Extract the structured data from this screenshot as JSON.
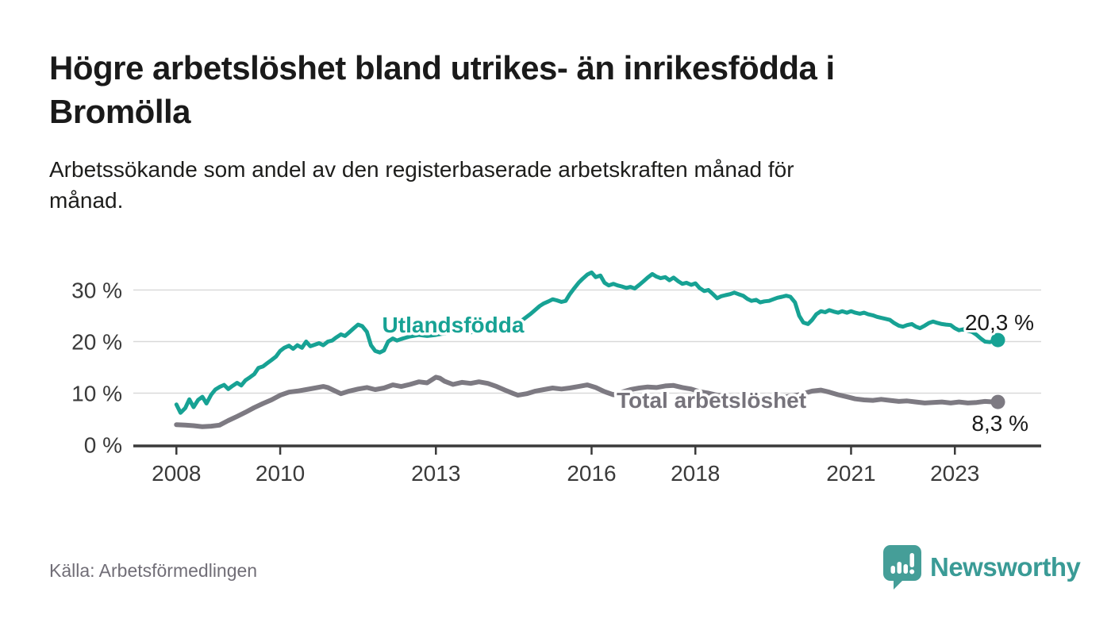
{
  "title": {
    "lines": [
      "Högre arbetslöshet bland utrikes- än inrikesfödda i",
      "Bromölla"
    ]
  },
  "subtitle": {
    "lines": [
      "Arbetssökande som andel av den registerbaserade arbetskraften månad för",
      "månad."
    ]
  },
  "footer": {
    "source": "Källa: Arbetsförmedlingen",
    "brand": "Newsworthy"
  },
  "colors": {
    "accent_teal": "#17a294",
    "line_gray": "#7d7a82",
    "axis": "#3a3a3a",
    "grid": "#d9d9d9",
    "brand_teal": "#3a9b96",
    "logo_teal": "#459e98"
  },
  "chart_data": {
    "type": "line",
    "xlabel": "",
    "ylabel": "",
    "grid": "horizontal",
    "xlim": [
      2007.17,
      2024.77
    ],
    "ylim": [
      0,
      34.7
    ],
    "y_ticks": [
      {
        "value": 0,
        "label": "0 %"
      },
      {
        "value": 10,
        "label": "10 %"
      },
      {
        "value": 20,
        "label": "20 %"
      },
      {
        "value": 30,
        "label": "30 %"
      }
    ],
    "x_ticks": [
      {
        "value": 2008,
        "label": "2008"
      },
      {
        "value": 2010,
        "label": "2010"
      },
      {
        "value": 2013,
        "label": "2013"
      },
      {
        "value": 2016,
        "label": "2016"
      },
      {
        "value": 2018,
        "label": "2018"
      },
      {
        "value": 2021,
        "label": "2021"
      },
      {
        "value": 2023,
        "label": "2023"
      }
    ],
    "series": [
      {
        "name": "Utlandsfödda",
        "color": "#17a294",
        "label_color": "#17a294",
        "end_label": "20,3 %",
        "end_value": 20.3,
        "points": [
          [
            2008.0,
            7.8
          ],
          [
            2008.08,
            6.2
          ],
          [
            2008.17,
            7.1
          ],
          [
            2008.25,
            8.8
          ],
          [
            2008.33,
            7.3
          ],
          [
            2008.42,
            8.7
          ],
          [
            2008.5,
            9.3
          ],
          [
            2008.58,
            8.0
          ],
          [
            2008.67,
            9.7
          ],
          [
            2008.75,
            10.7
          ],
          [
            2008.83,
            11.2
          ],
          [
            2008.92,
            11.6
          ],
          [
            2009.0,
            10.8
          ],
          [
            2009.08,
            11.4
          ],
          [
            2009.17,
            12.0
          ],
          [
            2009.25,
            11.5
          ],
          [
            2009.33,
            12.5
          ],
          [
            2009.42,
            13.1
          ],
          [
            2009.5,
            13.7
          ],
          [
            2009.58,
            14.9
          ],
          [
            2009.67,
            15.2
          ],
          [
            2009.75,
            15.8
          ],
          [
            2009.83,
            16.4
          ],
          [
            2009.92,
            17.1
          ],
          [
            2010.0,
            18.2
          ],
          [
            2010.08,
            18.8
          ],
          [
            2010.17,
            19.2
          ],
          [
            2010.25,
            18.6
          ],
          [
            2010.33,
            19.3
          ],
          [
            2010.42,
            18.8
          ],
          [
            2010.5,
            20.0
          ],
          [
            2010.58,
            19.1
          ],
          [
            2010.67,
            19.4
          ],
          [
            2010.75,
            19.7
          ],
          [
            2010.83,
            19.3
          ],
          [
            2010.92,
            20.0
          ],
          [
            2011.0,
            20.2
          ],
          [
            2011.08,
            20.8
          ],
          [
            2011.17,
            21.4
          ],
          [
            2011.25,
            21.1
          ],
          [
            2011.33,
            21.8
          ],
          [
            2011.42,
            22.6
          ],
          [
            2011.5,
            23.3
          ],
          [
            2011.58,
            23.0
          ],
          [
            2011.67,
            21.9
          ],
          [
            2011.75,
            19.3
          ],
          [
            2011.83,
            18.2
          ],
          [
            2011.92,
            17.9
          ],
          [
            2012.0,
            18.3
          ],
          [
            2012.08,
            20.0
          ],
          [
            2012.17,
            20.6
          ],
          [
            2012.25,
            20.2
          ],
          [
            2012.33,
            20.5
          ],
          [
            2012.5,
            21.0
          ],
          [
            2012.67,
            21.3
          ],
          [
            2012.83,
            21.1
          ],
          [
            2013.0,
            21.3
          ],
          [
            2013.17,
            21.6
          ],
          [
            2013.33,
            21.9
          ],
          [
            2013.5,
            22.1
          ],
          [
            2013.67,
            21.8
          ],
          [
            2013.83,
            22.0
          ],
          [
            2014.0,
            22.2
          ],
          [
            2014.17,
            22.4
          ],
          [
            2014.33,
            22.6
          ],
          [
            2014.5,
            23.2
          ],
          [
            2014.67,
            24.2
          ],
          [
            2014.83,
            25.4
          ],
          [
            2015.0,
            26.9
          ],
          [
            2015.08,
            27.4
          ],
          [
            2015.17,
            27.8
          ],
          [
            2015.25,
            28.2
          ],
          [
            2015.33,
            28.0
          ],
          [
            2015.42,
            27.7
          ],
          [
            2015.5,
            27.9
          ],
          [
            2015.58,
            29.2
          ],
          [
            2015.67,
            30.4
          ],
          [
            2015.75,
            31.4
          ],
          [
            2015.83,
            32.2
          ],
          [
            2015.92,
            33.0
          ],
          [
            2016.0,
            33.4
          ],
          [
            2016.08,
            32.5
          ],
          [
            2016.17,
            32.8
          ],
          [
            2016.25,
            31.4
          ],
          [
            2016.33,
            30.9
          ],
          [
            2016.42,
            31.2
          ],
          [
            2016.5,
            30.9
          ],
          [
            2016.58,
            30.7
          ],
          [
            2016.67,
            30.4
          ],
          [
            2016.75,
            30.6
          ],
          [
            2016.83,
            30.3
          ],
          [
            2016.92,
            31.0
          ],
          [
            2017.0,
            31.7
          ],
          [
            2017.08,
            32.4
          ],
          [
            2017.17,
            33.1
          ],
          [
            2017.25,
            32.6
          ],
          [
            2017.33,
            32.3
          ],
          [
            2017.42,
            32.5
          ],
          [
            2017.5,
            31.9
          ],
          [
            2017.58,
            32.4
          ],
          [
            2017.67,
            31.7
          ],
          [
            2017.75,
            31.2
          ],
          [
            2017.83,
            31.4
          ],
          [
            2017.92,
            31.0
          ],
          [
            2018.0,
            31.3
          ],
          [
            2018.08,
            30.4
          ],
          [
            2018.17,
            29.8
          ],
          [
            2018.25,
            30.0
          ],
          [
            2018.33,
            29.3
          ],
          [
            2018.42,
            28.4
          ],
          [
            2018.5,
            28.8
          ],
          [
            2018.58,
            29.0
          ],
          [
            2018.67,
            29.2
          ],
          [
            2018.75,
            29.5
          ],
          [
            2018.83,
            29.2
          ],
          [
            2018.92,
            28.9
          ],
          [
            2019.0,
            28.3
          ],
          [
            2019.08,
            27.9
          ],
          [
            2019.17,
            28.1
          ],
          [
            2019.25,
            27.6
          ],
          [
            2019.33,
            27.8
          ],
          [
            2019.42,
            27.9
          ],
          [
            2019.5,
            28.2
          ],
          [
            2019.58,
            28.5
          ],
          [
            2019.67,
            28.7
          ],
          [
            2019.75,
            28.9
          ],
          [
            2019.83,
            28.7
          ],
          [
            2019.92,
            27.6
          ],
          [
            2020.0,
            25.0
          ],
          [
            2020.08,
            23.7
          ],
          [
            2020.17,
            23.4
          ],
          [
            2020.25,
            24.2
          ],
          [
            2020.33,
            25.3
          ],
          [
            2020.42,
            25.9
          ],
          [
            2020.5,
            25.7
          ],
          [
            2020.58,
            26.1
          ],
          [
            2020.67,
            25.8
          ],
          [
            2020.75,
            25.6
          ],
          [
            2020.83,
            25.9
          ],
          [
            2020.92,
            25.6
          ],
          [
            2021.0,
            25.9
          ],
          [
            2021.08,
            25.6
          ],
          [
            2021.17,
            25.4
          ],
          [
            2021.25,
            25.6
          ],
          [
            2021.33,
            25.3
          ],
          [
            2021.42,
            25.1
          ],
          [
            2021.5,
            24.8
          ],
          [
            2021.58,
            24.6
          ],
          [
            2021.67,
            24.4
          ],
          [
            2021.75,
            24.2
          ],
          [
            2021.83,
            23.6
          ],
          [
            2021.92,
            23.1
          ],
          [
            2022.0,
            22.9
          ],
          [
            2022.08,
            23.2
          ],
          [
            2022.17,
            23.4
          ],
          [
            2022.25,
            22.9
          ],
          [
            2022.33,
            22.6
          ],
          [
            2022.42,
            23.1
          ],
          [
            2022.5,
            23.6
          ],
          [
            2022.58,
            23.9
          ],
          [
            2022.67,
            23.6
          ],
          [
            2022.75,
            23.4
          ],
          [
            2022.83,
            23.3
          ],
          [
            2022.92,
            23.2
          ],
          [
            2023.0,
            22.6
          ],
          [
            2023.08,
            22.2
          ],
          [
            2023.17,
            22.4
          ],
          [
            2023.25,
            22.1
          ],
          [
            2023.33,
            21.9
          ],
          [
            2023.42,
            21.3
          ],
          [
            2023.5,
            20.6
          ],
          [
            2023.58,
            20.0
          ],
          [
            2023.67,
            19.9
          ],
          [
            2023.75,
            20.1
          ],
          [
            2023.83,
            20.3
          ]
        ]
      },
      {
        "name": "Total arbetslöshet",
        "color": "#7d7a82",
        "label_color": "#76737b",
        "end_label": "8,3 %",
        "end_value": 8.3,
        "points": [
          [
            2008.0,
            3.9
          ],
          [
            2008.17,
            3.8
          ],
          [
            2008.33,
            3.7
          ],
          [
            2008.5,
            3.5
          ],
          [
            2008.67,
            3.6
          ],
          [
            2008.83,
            3.8
          ],
          [
            2009.0,
            4.7
          ],
          [
            2009.17,
            5.5
          ],
          [
            2009.33,
            6.3
          ],
          [
            2009.5,
            7.2
          ],
          [
            2009.67,
            8.0
          ],
          [
            2009.83,
            8.7
          ],
          [
            2010.0,
            9.6
          ],
          [
            2010.17,
            10.2
          ],
          [
            2010.33,
            10.4
          ],
          [
            2010.5,
            10.7
          ],
          [
            2010.67,
            11.0
          ],
          [
            2010.83,
            11.3
          ],
          [
            2010.92,
            11.1
          ],
          [
            2011.0,
            10.7
          ],
          [
            2011.17,
            9.9
          ],
          [
            2011.33,
            10.4
          ],
          [
            2011.5,
            10.8
          ],
          [
            2011.67,
            11.1
          ],
          [
            2011.83,
            10.7
          ],
          [
            2012.0,
            11.0
          ],
          [
            2012.17,
            11.6
          ],
          [
            2012.33,
            11.3
          ],
          [
            2012.5,
            11.7
          ],
          [
            2012.67,
            12.2
          ],
          [
            2012.83,
            12.0
          ],
          [
            2013.0,
            13.1
          ],
          [
            2013.08,
            12.9
          ],
          [
            2013.17,
            12.3
          ],
          [
            2013.33,
            11.7
          ],
          [
            2013.5,
            12.1
          ],
          [
            2013.67,
            11.9
          ],
          [
            2013.83,
            12.2
          ],
          [
            2014.0,
            11.9
          ],
          [
            2014.17,
            11.3
          ],
          [
            2014.33,
            10.6
          ],
          [
            2014.5,
            9.9
          ],
          [
            2014.58,
            9.6
          ],
          [
            2014.75,
            9.9
          ],
          [
            2014.92,
            10.4
          ],
          [
            2015.08,
            10.7
          ],
          [
            2015.25,
            11.0
          ],
          [
            2015.42,
            10.8
          ],
          [
            2015.58,
            11.0
          ],
          [
            2015.75,
            11.3
          ],
          [
            2015.92,
            11.6
          ],
          [
            2016.08,
            11.1
          ],
          [
            2016.25,
            10.3
          ],
          [
            2016.42,
            9.7
          ],
          [
            2016.58,
            10.2
          ],
          [
            2016.75,
            10.7
          ],
          [
            2016.92,
            11.0
          ],
          [
            2017.08,
            11.2
          ],
          [
            2017.25,
            11.1
          ],
          [
            2017.42,
            11.4
          ],
          [
            2017.58,
            11.5
          ],
          [
            2017.75,
            11.1
          ],
          [
            2017.92,
            10.8
          ],
          [
            2018.08,
            10.3
          ],
          [
            2018.25,
            10.0
          ],
          [
            2018.42,
            9.6
          ],
          [
            2018.58,
            9.4
          ],
          [
            2018.75,
            9.3
          ],
          [
            2019.0,
            9.1
          ],
          [
            2019.25,
            9.0
          ],
          [
            2019.5,
            9.1
          ],
          [
            2019.75,
            9.3
          ],
          [
            2020.0,
            9.7
          ],
          [
            2020.25,
            10.4
          ],
          [
            2020.42,
            10.6
          ],
          [
            2020.58,
            10.2
          ],
          [
            2020.75,
            9.7
          ],
          [
            2020.92,
            9.3
          ],
          [
            2021.08,
            8.9
          ],
          [
            2021.25,
            8.7
          ],
          [
            2021.42,
            8.6
          ],
          [
            2021.58,
            8.8
          ],
          [
            2021.75,
            8.6
          ],
          [
            2021.92,
            8.4
          ],
          [
            2022.08,
            8.5
          ],
          [
            2022.25,
            8.3
          ],
          [
            2022.42,
            8.1
          ],
          [
            2022.58,
            8.2
          ],
          [
            2022.75,
            8.3
          ],
          [
            2022.92,
            8.1
          ],
          [
            2023.08,
            8.3
          ],
          [
            2023.25,
            8.1
          ],
          [
            2023.42,
            8.2
          ],
          [
            2023.58,
            8.4
          ],
          [
            2023.75,
            8.3
          ],
          [
            2023.83,
            8.3
          ]
        ]
      }
    ]
  }
}
